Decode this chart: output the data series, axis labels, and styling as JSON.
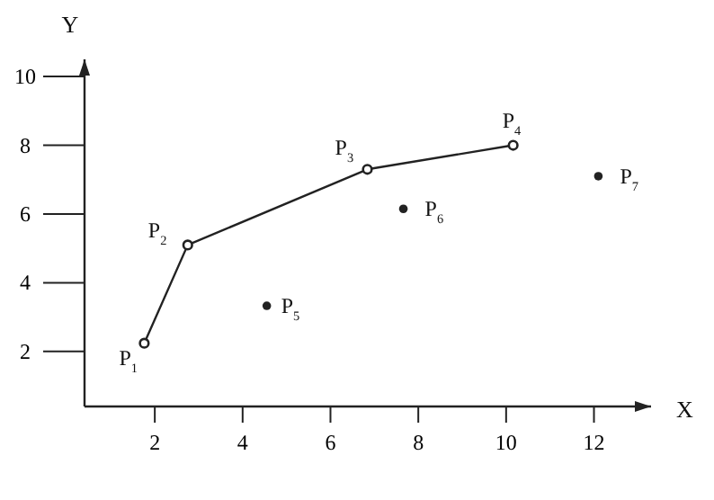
{
  "chart_data": {
    "type": "line",
    "xlabel": "X",
    "ylabel": "Y",
    "xlim": [
      0.4,
      13.3
    ],
    "ylim": [
      0.4,
      10.5
    ],
    "xticks": [
      2,
      4,
      6,
      8,
      10,
      12
    ],
    "yticks": [
      2,
      4,
      6,
      8,
      10
    ],
    "grid": false,
    "marker": "circle",
    "line_style": "solid",
    "series": [
      {
        "color": "#222222",
        "x": [
          1.76,
          2.75,
          6.84,
          10.16
        ],
        "values": [
          2.24,
          5.1,
          7.3,
          8.0
        ]
      },
      {
        "type": "scatter",
        "color": "#222222",
        "x": [
          4.55,
          7.66,
          12.1
        ],
        "values": [
          3.33,
          6.15,
          7.1
        ]
      }
    ],
    "annotations": [
      {
        "text": "P$_{1}$",
        "x": 1.76,
        "y": 2.24
      },
      {
        "text": "P$_{2}$",
        "x": 2.75,
        "y": 5.1
      },
      {
        "text": "P$_{3}$",
        "x": 6.84,
        "y": 7.3
      },
      {
        "text": "P$_{4}$",
        "x": 10.16,
        "y": 8.0
      },
      {
        "text": "P$_{5}$",
        "x": 4.55,
        "y": 3.33
      },
      {
        "text": "P$_{6}$",
        "x": 7.66,
        "y": 6.15
      },
      {
        "text": "P$_{7}$",
        "x": 12.1,
        "y": 7.1
      }
    ]
  }
}
